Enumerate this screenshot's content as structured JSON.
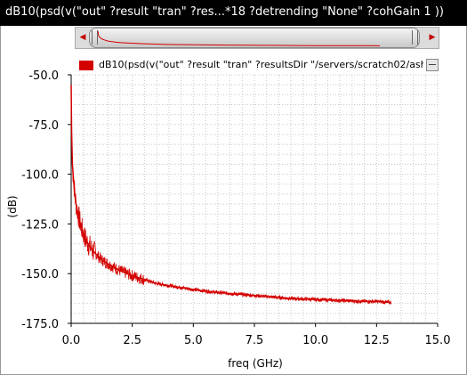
{
  "window": {
    "title": "dB10(psd(v(\"out\" ?result \"tran\" ?res...*18 ?detrending \"None\" ?cohGain 1 ))"
  },
  "legend": {
    "label": "dB10(psd(v(\"out\" ?result \"tran\" ?resultsDir \"/servers/scratch02/ash",
    "color": "#d40000"
  },
  "chart_data": {
    "type": "line",
    "xlabel": "freq (GHz)",
    "ylabel": "(dB)",
    "xlim": [
      0,
      15
    ],
    "ylim": [
      -175,
      -50
    ],
    "xticks": [
      "0.0",
      "2.5",
      "5.0",
      "7.5",
      "10.0",
      "12.5",
      "15.0"
    ],
    "yticks": [
      "-50.0",
      "-75.0",
      "-100.0",
      "-125.0",
      "-150.0",
      "-175.0"
    ],
    "grid": true,
    "series": [
      {
        "color": "#d40000",
        "x": [
          0.0,
          0.02,
          0.05,
          0.1,
          0.15,
          0.2,
          0.3,
          0.4,
          0.5,
          0.6,
          0.8,
          1.0,
          1.25,
          1.5,
          2.0,
          2.5,
          3.0,
          3.5,
          4.0,
          5.0,
          6.0,
          7.0,
          7.5,
          8.0,
          9.0,
          10.0,
          11.0,
          12.0,
          12.5,
          13.1
        ],
        "y": [
          -55,
          -78,
          -95,
          -103,
          -110,
          -115,
          -121,
          -126,
          -130,
          -133,
          -137,
          -140,
          -143,
          -145,
          -148.5,
          -151,
          -153,
          -155,
          -156,
          -158,
          -159.5,
          -160.5,
          -161,
          -161.5,
          -162.5,
          -163,
          -163.5,
          -164,
          -164,
          -164.5
        ]
      }
    ]
  }
}
